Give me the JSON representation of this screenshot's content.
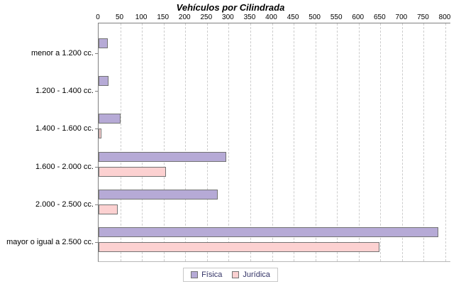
{
  "title": "Vehículos por Cilindrada",
  "chart_data": {
    "type": "bar",
    "orientation": "horizontal",
    "title": "Vehículos por Cilindrada",
    "categories": [
      "menor a 1.200 cc.",
      "1.200 - 1.400 cc.",
      "1.400 - 1.600 cc.",
      "1.600 - 2.000 cc.",
      "2.000 - 2.500 cc.",
      "mayor o igual a 2.500 cc."
    ],
    "series": [
      {
        "name": "Física",
        "color": "#b6aad6",
        "values": [
          21,
          23,
          50,
          295,
          275,
          784
        ]
      },
      {
        "name": "Jurídica",
        "color": "#fcd1d1",
        "values": [
          0,
          0,
          7,
          155,
          44,
          648
        ]
      }
    ],
    "xlim": [
      0,
      800
    ],
    "x_ticks": [
      0,
      50,
      100,
      150,
      200,
      250,
      300,
      350,
      400,
      450,
      500,
      550,
      600,
      650,
      700,
      750,
      800
    ],
    "grid": true,
    "legend_position": "bottom",
    "xlabel": "",
    "ylabel": ""
  },
  "colors": {
    "bar_border": "#737373",
    "gridline": "#cccccc",
    "axis": "#808080",
    "legend_text": "#333366",
    "legend_border": "#c8c8c8",
    "background": "#ffffff"
  }
}
